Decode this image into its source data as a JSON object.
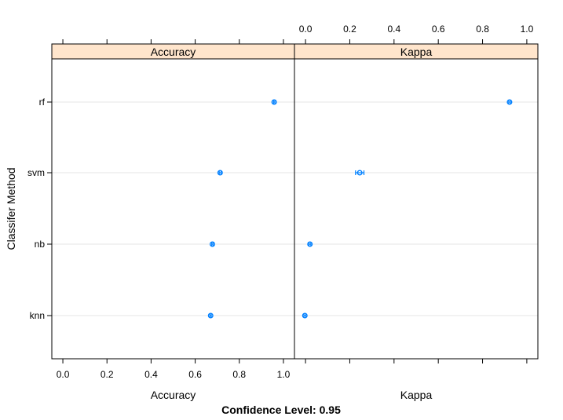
{
  "chart_data": {
    "type": "dotplot",
    "layout": "two panels side by side, shared y axis",
    "y_axis_label": "Classifer Method",
    "categories": [
      "rf",
      "svm",
      "nb",
      "knn"
    ],
    "footer": "Confidence Level: 0.95",
    "grid": "horizontal reference lines at each category",
    "colors": {
      "point": "#0080ff",
      "strip": "#ffe5cc",
      "grid": "#e6e6e6",
      "frame": "#000000"
    },
    "panels": [
      {
        "strip_label": "Accuracy",
        "x_axis_label": "Accuracy",
        "x_range": [
          -0.05,
          1.05
        ],
        "ticks": [
          0.0,
          0.2,
          0.4,
          0.6,
          0.8,
          1.0
        ],
        "tick_labels": [
          "0.0",
          "0.2",
          "0.4",
          "0.6",
          "0.8",
          "1.0"
        ],
        "tick_labels_position": "bottom",
        "points": [
          {
            "category": "rf",
            "estimate": 0.958,
            "lower": 0.955,
            "upper": 0.961
          },
          {
            "category": "svm",
            "estimate": 0.713,
            "lower": 0.709,
            "upper": 0.717
          },
          {
            "category": "nb",
            "estimate": 0.678,
            "lower": 0.675,
            "upper": 0.681
          },
          {
            "category": "knn",
            "estimate": 0.67,
            "lower": 0.667,
            "upper": 0.673
          }
        ]
      },
      {
        "strip_label": "Kappa",
        "x_axis_label": "Kappa",
        "x_range": [
          -0.05,
          1.05
        ],
        "ticks": [
          0.0,
          0.2,
          0.4,
          0.6,
          0.8,
          1.0
        ],
        "tick_labels": [
          "0.0",
          "0.2",
          "0.4",
          "0.6",
          "0.8",
          "1.0"
        ],
        "tick_labels_position": "top",
        "points": [
          {
            "category": "rf",
            "estimate": 0.922,
            "lower": 0.918,
            "upper": 0.926
          },
          {
            "category": "svm",
            "estimate": 0.245,
            "lower": 0.226,
            "upper": 0.264
          },
          {
            "category": "nb",
            "estimate": 0.02,
            "lower": 0.016,
            "upper": 0.024
          },
          {
            "category": "knn",
            "estimate": -0.003,
            "lower": -0.007,
            "upper": 0.001
          }
        ]
      }
    ]
  }
}
